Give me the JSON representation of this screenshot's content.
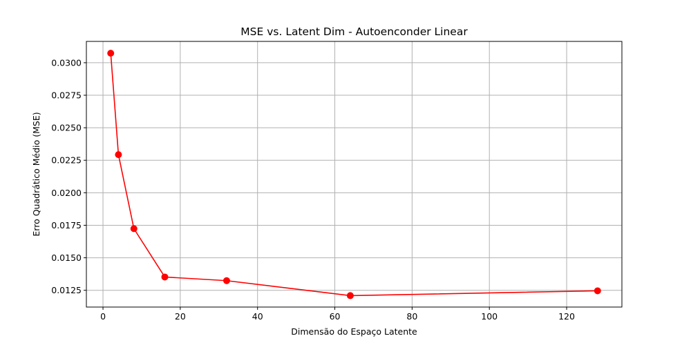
{
  "chart_data": {
    "type": "line",
    "title": "MSE vs. Latent Dim - Autoenconder Linear",
    "xlabel": "Dimensão do Espaço Latente",
    "ylabel": "Erro Quadrático Médio (MSE)",
    "xlim": [
      -4.3,
      134.3
    ],
    "ylim": [
      0.01121,
      0.03164
    ],
    "xticks": [
      0,
      20,
      40,
      60,
      80,
      100,
      120
    ],
    "xtick_labels": [
      "0",
      "20",
      "40",
      "60",
      "80",
      "100",
      "120"
    ],
    "yticks": [
      0.0125,
      0.015,
      0.0175,
      0.02,
      0.0225,
      0.025,
      0.0275,
      0.03
    ],
    "ytick_labels": [
      "0.0125",
      "0.0150",
      "0.0175",
      "0.0200",
      "0.0225",
      "0.0250",
      "0.0275",
      "0.0300"
    ],
    "grid": true,
    "series": [
      {
        "color": "#ff0000",
        "marker": "circle",
        "x": [
          2,
          4,
          8,
          16,
          32,
          64,
          128
        ],
        "y": [
          0.03073,
          0.02293,
          0.01724,
          0.01352,
          0.01324,
          0.01209,
          0.01246
        ]
      }
    ]
  }
}
